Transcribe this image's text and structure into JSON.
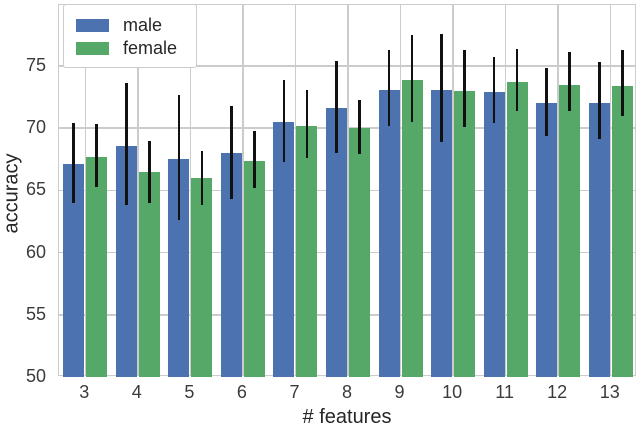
{
  "chart_data": {
    "type": "bar",
    "title": "",
    "xlabel": "# features",
    "ylabel": "accuracy",
    "categories": [
      "3",
      "4",
      "5",
      "6",
      "7",
      "8",
      "9",
      "10",
      "11",
      "12",
      "13"
    ],
    "series": [
      {
        "name": "male",
        "color": "#4C72B0",
        "values": [
          67.1,
          68.6,
          67.5,
          68.0,
          70.5,
          71.6,
          73.1,
          73.1,
          72.9,
          72.0,
          72.0
        ],
        "err_low": [
          64.0,
          63.8,
          62.6,
          64.3,
          67.3,
          68.0,
          70.2,
          68.9,
          70.4,
          69.4,
          69.1
        ],
        "err_high": [
          70.4,
          73.6,
          72.7,
          71.8,
          73.9,
          75.4,
          76.3,
          77.6,
          75.7,
          74.8,
          75.3
        ]
      },
      {
        "name": "female",
        "color": "#55A868",
        "values": [
          67.7,
          66.5,
          66.0,
          67.4,
          70.2,
          70.0,
          73.9,
          73.0,
          73.7,
          73.5,
          73.4
        ],
        "err_low": [
          65.3,
          64.0,
          63.8,
          65.2,
          67.6,
          67.9,
          70.5,
          70.1,
          71.4,
          71.4,
          71.0
        ],
        "err_high": [
          70.3,
          69.0,
          68.2,
          69.8,
          73.1,
          72.3,
          77.5,
          76.3,
          76.4,
          76.1,
          76.3
        ]
      }
    ],
    "ylim": [
      50,
      79.9
    ],
    "yticks": [
      50,
      55,
      60,
      65,
      70,
      75
    ],
    "grid": true,
    "legend_position": "upper left",
    "error_bar_color": "#111111",
    "grid_color": "#cccccc",
    "background_color": "#ffffff"
  },
  "legend": {
    "items": [
      {
        "label": "male",
        "color": "#4C72B0"
      },
      {
        "label": "female",
        "color": "#55A868"
      }
    ]
  },
  "axes": {
    "xlabel": "# features",
    "ylabel": "accuracy"
  }
}
